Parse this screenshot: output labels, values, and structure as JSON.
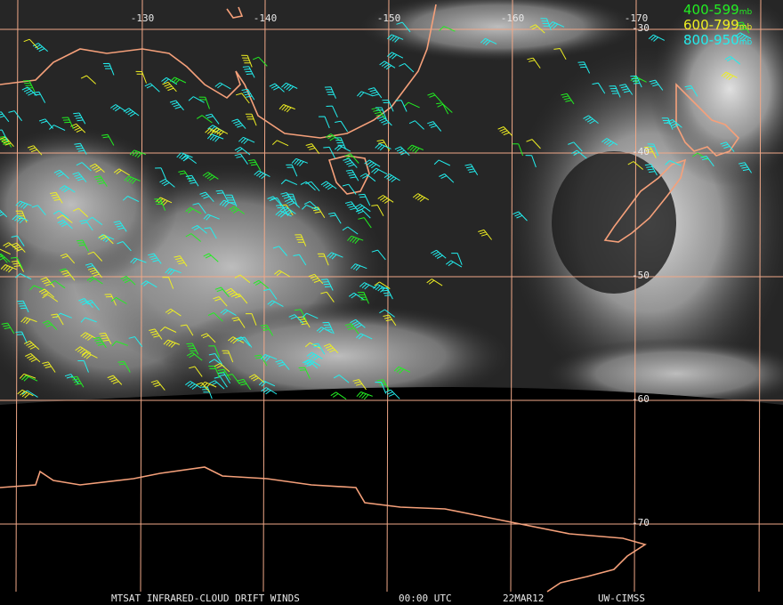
{
  "map": {
    "longitude_labels": [
      "-130",
      "-140",
      "-150",
      "-160",
      "-170"
    ],
    "latitude_labels": [
      "-30",
      "-40",
      "-50",
      "-60",
      "-70"
    ],
    "legend": [
      {
        "label": "400-599",
        "unit": "mb",
        "color": "#22ee22"
      },
      {
        "label": "600-799",
        "unit": "mb",
        "color": "#eeee22"
      },
      {
        "label": "800-950",
        "unit": "mb",
        "color": "#22eeee"
      }
    ],
    "footer": {
      "product": "MTSAT INFRARED-CLOUD DRIFT WINDS",
      "time": "00:00 UTC",
      "date": "22MAR12",
      "source": "UW-CIMSS"
    }
  }
}
